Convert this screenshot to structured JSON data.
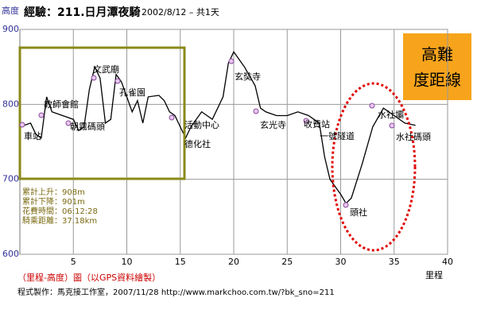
{
  "chart_data": {
    "type": "line",
    "title": "經驗：211.日月潭夜騎",
    "subtitle": "2002/8/12 – 共1天",
    "ylabel": "高度",
    "xlabel": "里程",
    "xlim": [
      0,
      40
    ],
    "xticks": [
      5,
      10,
      15,
      20,
      25,
      30,
      35,
      40
    ],
    "ylim": [
      600,
      900
    ],
    "yticks": [
      600,
      700,
      800,
      900
    ],
    "grid": true,
    "series": [
      {
        "color": "#000000",
        "x": [
          0,
          1,
          1.5,
          2,
          2.5,
          3,
          4,
          5,
          5.5,
          6,
          6.5,
          7,
          7.5,
          8,
          8.5,
          9,
          9.5,
          10,
          10.5,
          11,
          11.5,
          12,
          13,
          13.5,
          14,
          14.5,
          15,
          15.5,
          16,
          17,
          18,
          19,
          19.5,
          20,
          20.5,
          21,
          22,
          22.5,
          23,
          24,
          25,
          26,
          27,
          28,
          28.5,
          29,
          30,
          30.5,
          31,
          32,
          33,
          34,
          35,
          36,
          37
        ],
        "values": [
          770,
          775,
          760,
          755,
          810,
          790,
          785,
          780,
          765,
          770,
          820,
          850,
          835,
          775,
          780,
          840,
          830,
          810,
          790,
          805,
          775,
          810,
          812,
          805,
          790,
          785,
          770,
          755,
          770,
          790,
          780,
          810,
          855,
          870,
          860,
          850,
          825,
          795,
          790,
          785,
          785,
          790,
          785,
          775,
          730,
          700,
          680,
          668,
          675,
          720,
          770,
          795,
          785,
          775,
          772
        ]
      }
    ],
    "annotations": [
      "車站",
      "教師會館",
      "朝霧碼頭",
      "文武廟",
      "孔雀園",
      "活動中心",
      "德化社",
      "玄奘寺",
      "玄光寺",
      "收費站",
      "一號隧道",
      "頭社",
      "水社壩",
      "水社碼頭"
    ],
    "stats": [
      "累計上升：908m",
      "累計下降：901m",
      "花費時間：06:12:28",
      "騎乘距離：37.18km"
    ],
    "badge": [
      "高難",
      "度距線"
    ],
    "caption": "（里程-高度）圖（以GPS資料繪製）",
    "credit": "程式製作：馬克接工作室，2007/11/28 http://www.markchoo.com.tw/?bk_sno=211"
  }
}
